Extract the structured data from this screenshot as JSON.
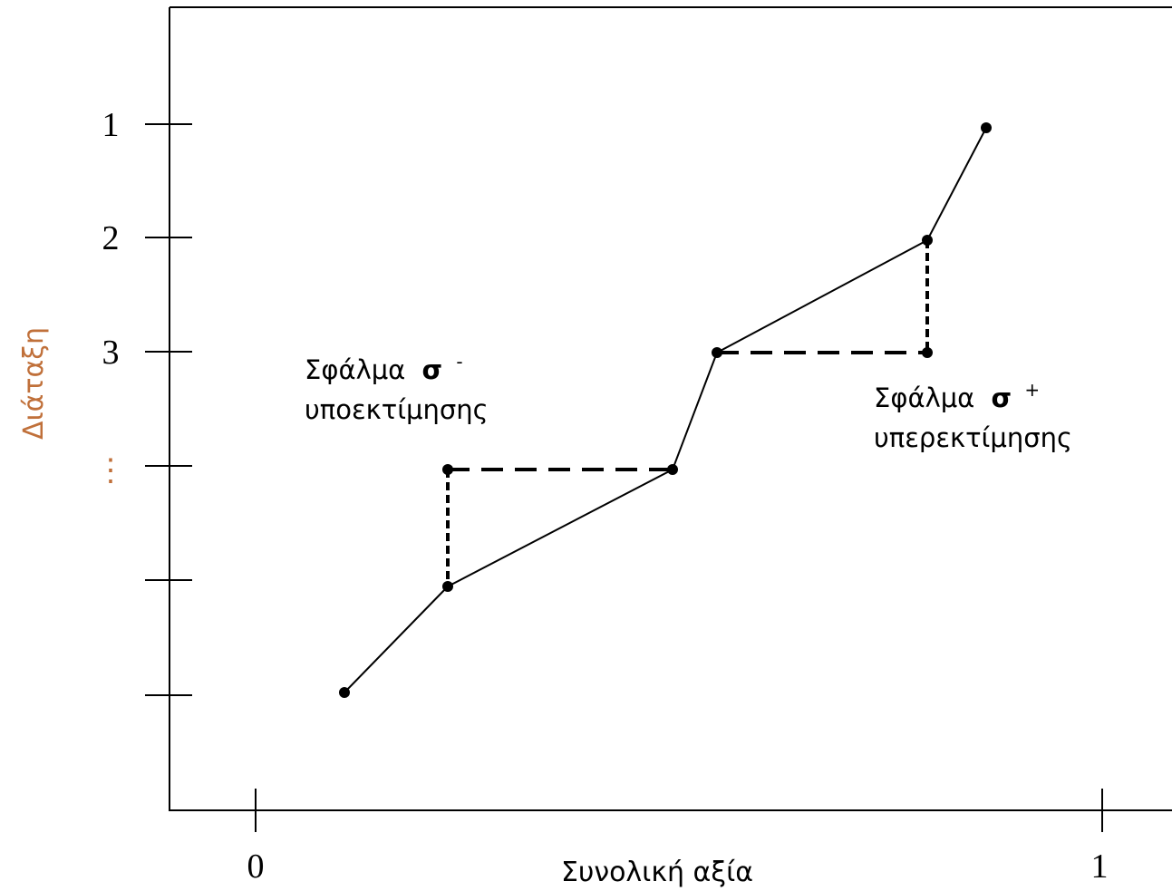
{
  "axes": {
    "x_label": "Συνολική αξία",
    "y_label": "Διάταξη",
    "x_ticks": [
      "0",
      "1"
    ],
    "y_ticks": [
      "1",
      "2",
      "3",
      "⋮"
    ],
    "axis_color": "#000000",
    "label_color": "#c0703a"
  },
  "annotations": {
    "under": {
      "line1": "Σφάλμα",
      "sigma": "σ",
      "sign": "-",
      "line2": "υποεκτίμησης"
    },
    "over": {
      "line1": "Σφάλμα",
      "sigma": "σ",
      "sign": "+",
      "line2": "υπερεκτίμησης"
    }
  }
}
